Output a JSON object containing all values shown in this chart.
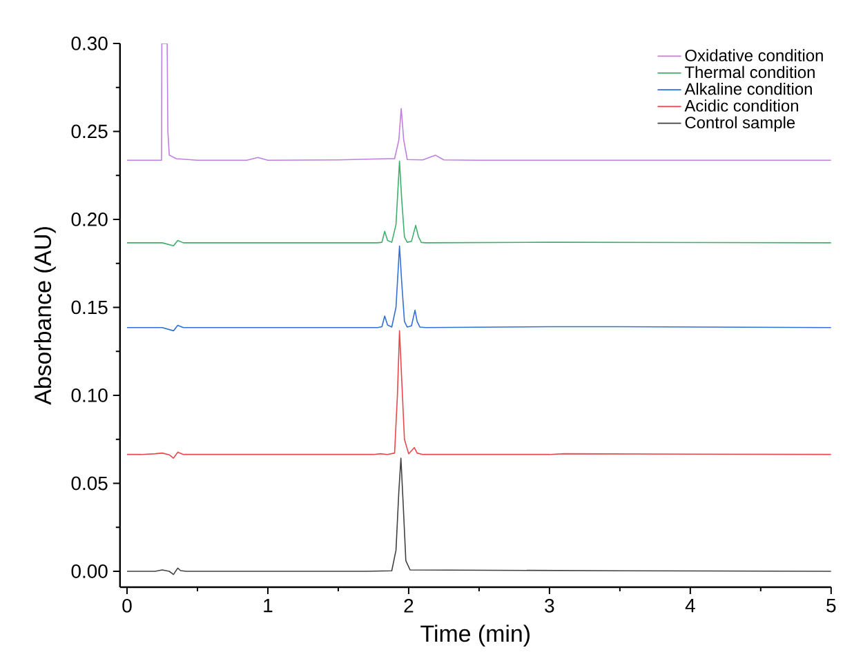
{
  "chart_data": {
    "type": "line",
    "xlabel": "Time (min)",
    "ylabel": "Absorbance (AU)",
    "xlim": [
      -0.05,
      5
    ],
    "ylim": [
      -0.009,
      0.3
    ],
    "xticks": [
      0,
      {
        "value": 0.5,
        "label": null
      },
      1,
      {
        "value": 1.5,
        "label": null
      },
      2,
      {
        "value": 2.5,
        "label": null
      },
      3,
      {
        "value": 3.5,
        "label": null
      },
      4,
      {
        "value": 4.5,
        "label": null
      },
      5
    ],
    "yticks": [
      {
        "value": 0,
        "label": "0.00"
      },
      {
        "value": 0.025,
        "label": null
      },
      {
        "value": 0.05,
        "label": "0.05"
      },
      {
        "value": 0.075,
        "label": null
      },
      {
        "value": 0.1,
        "label": "0.10"
      },
      {
        "value": 0.125,
        "label": null
      },
      {
        "value": 0.15,
        "label": "0.15"
      },
      {
        "value": 0.175,
        "label": null
      },
      {
        "value": 0.2,
        "label": "0.20"
      },
      {
        "value": 0.225,
        "label": null
      },
      {
        "value": 0.25,
        "label": "0.25"
      },
      {
        "value": 0.275,
        "label": null
      },
      {
        "value": 0.3,
        "label": "0.30"
      }
    ],
    "legend": "top right",
    "grid": false,
    "marker": "none",
    "line_style": "solid",
    "series": [
      {
        "name": "Oxidative condition",
        "color": "#c07ee0",
        "x": [
          0,
          0.245,
          0.247,
          0.285,
          0.29,
          0.3,
          0.35,
          0.5,
          0.85,
          0.93,
          1.0,
          1.5,
          1.85,
          1.9,
          1.93,
          1.947,
          1.965,
          1.99,
          2.1,
          2.19,
          2.25,
          2.5,
          3,
          5.0
        ],
        "values": [
          0.2336,
          0.2336,
          0.3,
          0.3,
          0.25,
          0.2365,
          0.2345,
          0.2336,
          0.2336,
          0.2352,
          0.2336,
          0.2338,
          0.2345,
          0.2345,
          0.245,
          0.263,
          0.245,
          0.234,
          0.2338,
          0.2365,
          0.2338,
          0.2336,
          0.2336,
          0.2336
        ]
      },
      {
        "name": "Thermal condition",
        "color": "#3fae6a",
        "x": [
          0,
          0.25,
          0.33,
          0.36,
          0.4,
          1.78,
          1.81,
          1.83,
          1.85,
          1.88,
          1.91,
          1.935,
          1.95,
          1.97,
          1.99,
          2.02,
          2.05,
          2.07,
          2.09,
          2.12,
          3.0,
          5.0
        ],
        "values": [
          0.1867,
          0.1867,
          0.185,
          0.188,
          0.1867,
          0.1867,
          0.187,
          0.1932,
          0.188,
          0.187,
          0.197,
          0.2331,
          0.212,
          0.19,
          0.187,
          0.1875,
          0.1966,
          0.19,
          0.1869,
          0.1867,
          0.187,
          0.1867
        ]
      },
      {
        "name": "Alkaline condition",
        "color": "#2f6fd6",
        "x": [
          0,
          0.25,
          0.33,
          0.36,
          0.4,
          1.78,
          1.81,
          1.83,
          1.85,
          1.88,
          1.91,
          1.935,
          1.95,
          1.97,
          1.99,
          2.02,
          2.045,
          2.06,
          2.08,
          2.12,
          3.0,
          3.5,
          5.0
        ],
        "values": [
          0.1385,
          0.1385,
          0.1367,
          0.1398,
          0.1385,
          0.1385,
          0.139,
          0.1451,
          0.14,
          0.1388,
          0.15,
          0.1849,
          0.165,
          0.142,
          0.1388,
          0.1395,
          0.1484,
          0.142,
          0.1388,
          0.1385,
          0.139,
          0.139,
          0.1385
        ]
      },
      {
        "name": "Acidic condition",
        "color": "#e8474a",
        "x": [
          0,
          0.1,
          0.2,
          0.25,
          0.3,
          0.33,
          0.36,
          0.4,
          1.75,
          1.8,
          1.85,
          1.9,
          1.92,
          1.935,
          1.95,
          1.97,
          2.0,
          2.02,
          2.04,
          2.06,
          2.1,
          3.0,
          3.1,
          5.0
        ],
        "values": [
          0.0664,
          0.0664,
          0.0668,
          0.0672,
          0.0662,
          0.0643,
          0.0677,
          0.0664,
          0.0664,
          0.0668,
          0.0664,
          0.0672,
          0.1,
          0.1367,
          0.11,
          0.075,
          0.0668,
          0.0685,
          0.0703,
          0.0672,
          0.0664,
          0.0664,
          0.0668,
          0.0664
        ]
      },
      {
        "name": "Control sample",
        "color": "#404040",
        "x": [
          0,
          0.2,
          0.25,
          0.3,
          0.33,
          0.36,
          0.38,
          0.42,
          1.7,
          1.88,
          1.91,
          1.93,
          1.945,
          1.96,
          1.98,
          2.01,
          3.5,
          5.0
        ],
        "values": [
          0,
          0,
          0.0008,
          0,
          -0.0018,
          0.0018,
          0.0004,
          0,
          0,
          0.0003,
          0.012,
          0.045,
          0.0643,
          0.04,
          0.006,
          0.0008,
          0.0003,
          0
        ]
      }
    ]
  }
}
